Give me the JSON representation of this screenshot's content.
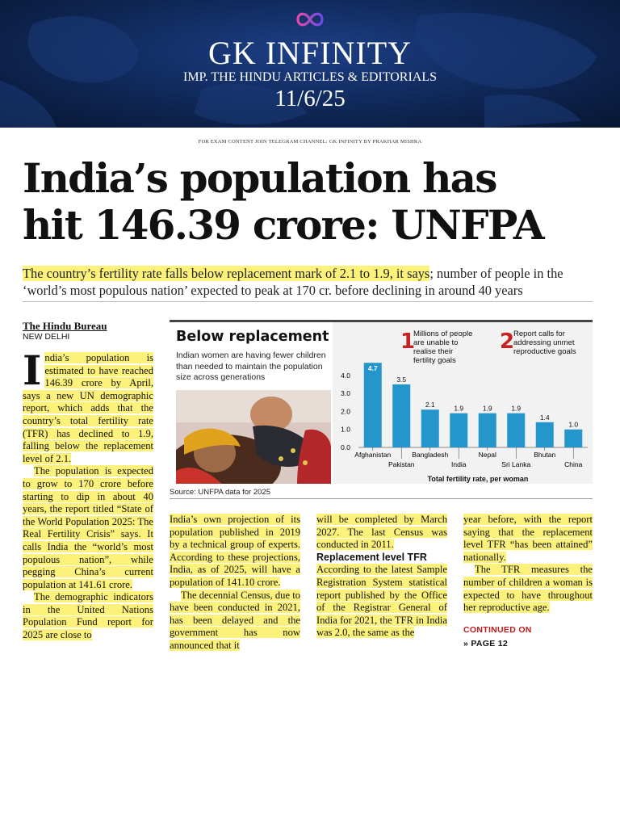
{
  "banner": {
    "title": "GK INFINITY",
    "subtitle": "IMP. THE HINDU ARTICLES & EDITORIALS",
    "date": "11/6/25",
    "logo": "infinity-icon"
  },
  "telegram_note": "FOR EXAM CONTENT JOIN TELEGRAM CHANNEL: GK INFINITY BY PRAKHAR MISHRA",
  "article": {
    "headline_line1": "India’s population has",
    "headline_line2": "hit 146.39 crore: UNFPA",
    "deck_part1": "The country’s fertility rate falls below replacement mark of 2.1 to 1.9, it says",
    "deck_part2": "; number of people in the ‘world’s most populous nation’ expected to peak at 170 cr. before declining in around 40 years",
    "byline": "The Hindu Bureau",
    "dateline": "NEW DELHI",
    "col1_p1_drop": "I",
    "col1_p1": "ndia’s population is estimated to have reached 146.39 crore by April, says a new UN demographic report, which adds that the country’s total fertility rate (TFR) has declined to 1.9, falling below the replacement level of 2.1.",
    "col1_p2": "The population is expected to grow to 170 crore before starting to dip in about 40 years, the report titled “State of the World Population 2025: The Real Fertility Crisis” says. It calls India the “world’s most populous nation”, while pegging China’s current population at 141.61 crore.",
    "col1_p3": "The demographic indicators in the United Nations Population Fund report for 2025 are close to",
    "col2_p1": "India’s own projection of its population published in 2019 by a technical group of experts. According to these projections, India, as of 2025, will have a population of 141.10 crore.",
    "col2_p2": "The decennial Census, due to have been conducted in 2021, has been delayed and the government has now announced that it",
    "col3_p1": "will be completed by March 2027. The last Census was conducted in 2011.",
    "col3_subhead": "Replacement level TFR",
    "col3_p2": "According to the latest Sample Registration System statistical report published by the Office of the Registrar General of India for 2021, the TFR in India was 2.0, the same as the",
    "col4_p1": "year before, with the report saying that the replacement level TFR “has been attained” nationally.",
    "col4_p2": "The TFR measures the number of children a woman is expected to have throughout her reproductive age.",
    "continued": "CONTINUED ON",
    "continued_page": "» PAGE 12"
  },
  "graphic": {
    "title": "Below replacement",
    "subtitle": "Indian women are having fewer children than needed to maintain the population size across generations",
    "source": "Source: UNFPA data for 2025",
    "note1_num": "1",
    "note1_text": "Millions of people are unable to realise their fertility goals",
    "note2_num": "2",
    "note2_text": "Report calls for addressing unmet reproductive goals"
  },
  "chart_data": {
    "type": "bar",
    "categories": [
      "Afghanistan",
      "Pakistan",
      "Bangladesh",
      "India",
      "Nepal",
      "Sri Lanka",
      "Bhutan",
      "China"
    ],
    "values": [
      4.7,
      3.5,
      2.1,
      1.9,
      1.9,
      1.9,
      1.4,
      1.0
    ],
    "yticks": [
      "0.0",
      "1.0",
      "2.0",
      "3.0",
      "4.0"
    ],
    "ylim": [
      0,
      4.8
    ],
    "xlabel": "Total fertility rate, per woman",
    "bar_color": "#2596cc"
  }
}
